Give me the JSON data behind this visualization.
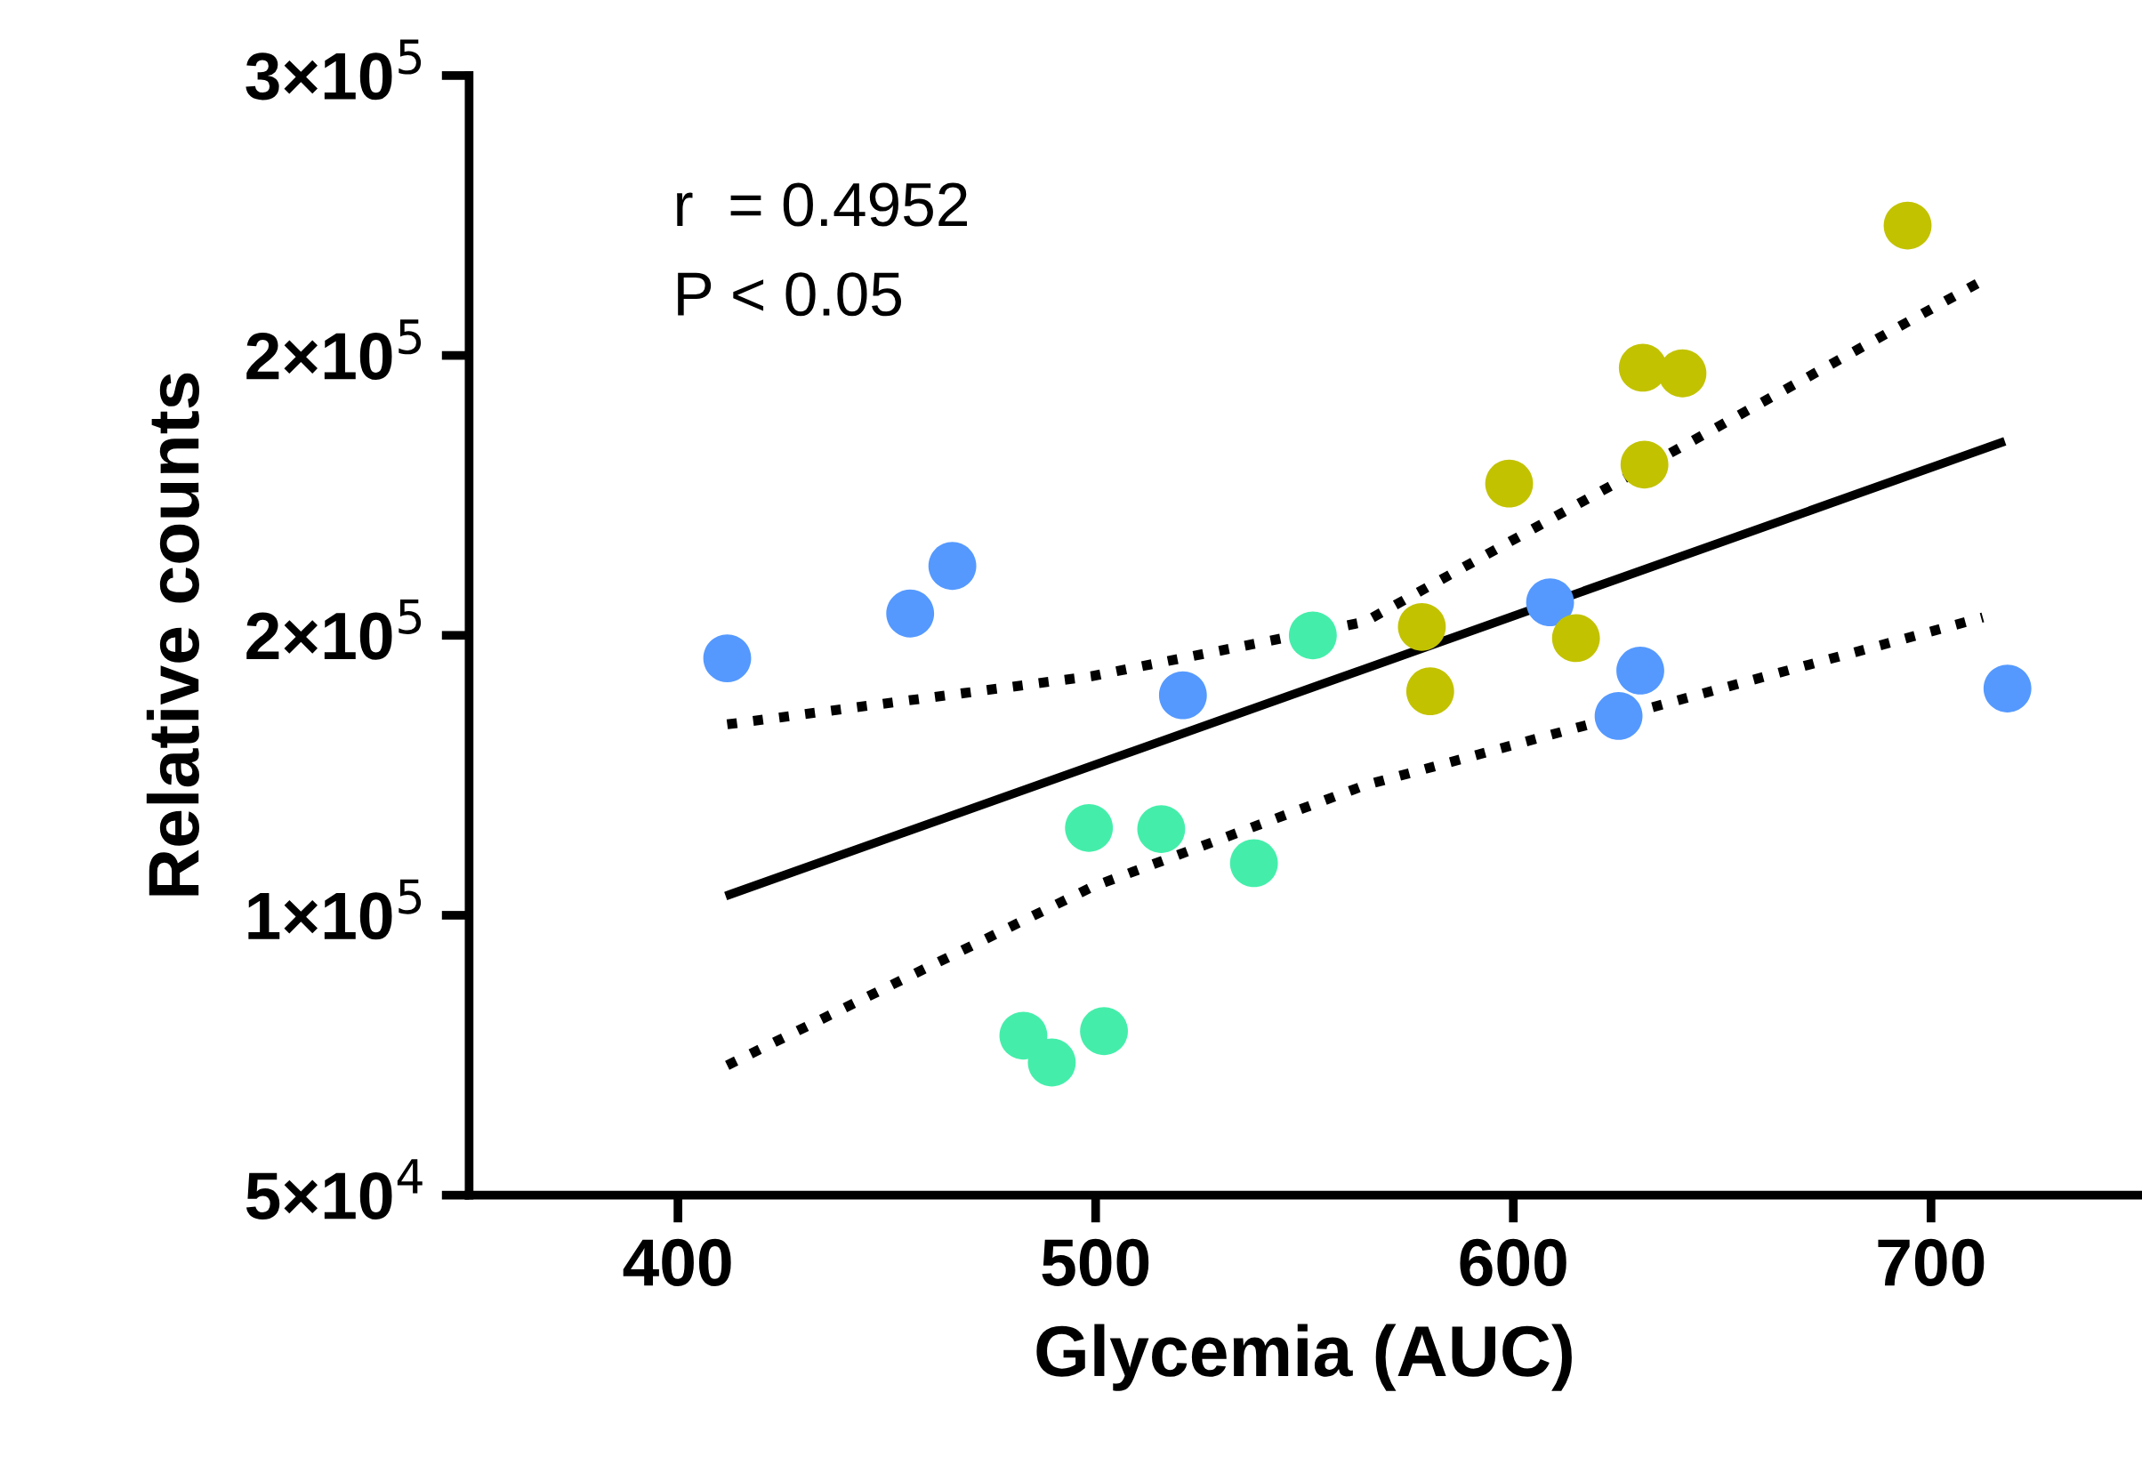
{
  "chart_data": {
    "type": "scatter",
    "xlabel": "Glycemia (AUC)",
    "ylabel": "Relative counts",
    "xlim": [
      350,
      750
    ],
    "xticks": [
      400,
      500,
      600,
      700
    ],
    "ylim": [
      50000,
      250000
    ],
    "yticks": [
      {
        "value": 50000,
        "label": "5×10$^{4}$"
      },
      {
        "value": 100000,
        "label": "1×10$^{5}$"
      },
      {
        "value": 150000,
        "label": "2×10$^{5}$"
      },
      {
        "value": 200000,
        "label": "2×10$^{5}$"
      },
      {
        "value": 250000,
        "label": "3×10$^{5}$"
      }
    ],
    "grid": false,
    "marker": "circle",
    "annotations": [
      "r  = 0.4952",
      "P < 0.05"
    ],
    "series": [
      {
        "color": "#5599ff",
        "x": [
          411.8,
          455.6,
          465.7,
          520.9,
          608.8,
          630.4,
          625.2,
          718.3
        ],
        "values": [
          145900,
          153900,
          162400,
          139300,
          155900,
          143700,
          135600,
          140500
        ]
      },
      {
        "color": "#44eeaa",
        "x": [
          552.0,
          498.4,
          515.7,
          537.9,
          482.7,
          489.5,
          502.0
        ],
        "values": [
          150000,
          115600,
          115400,
          109300,
          78500,
          73700,
          79300
        ]
      },
      {
        "color": "#c2c200",
        "x": [
          694.4,
          631.0,
          640.5,
          631.4,
          599.0,
          578.1,
          580.1,
          615.0
        ],
        "values": [
          223200,
          197800,
          196800,
          180500,
          177100,
          151500,
          140000,
          149500
        ]
      },
      {
        "type": "line",
        "color": "#000000",
        "line_style": "solid",
        "marker": "none",
        "x": [
          412.4,
          716.7
        ],
        "values": [
          103700,
          184400
        ]
      },
      {
        "type": "line",
        "color": "#000000",
        "line_style": "dotted",
        "marker": "none",
        "x": [
          411.8,
          499,
          564.4,
          712.4
        ],
        "values": [
          134100,
          142700,
          152400,
          213400
        ]
      },
      {
        "type": "line",
        "color": "#000000",
        "line_style": "dotted",
        "marker": "none",
        "x": [
          411.8,
          499,
          564.4,
          712.4
        ],
        "values": [
          73200,
          105000,
          123200,
          153200
        ]
      }
    ]
  }
}
